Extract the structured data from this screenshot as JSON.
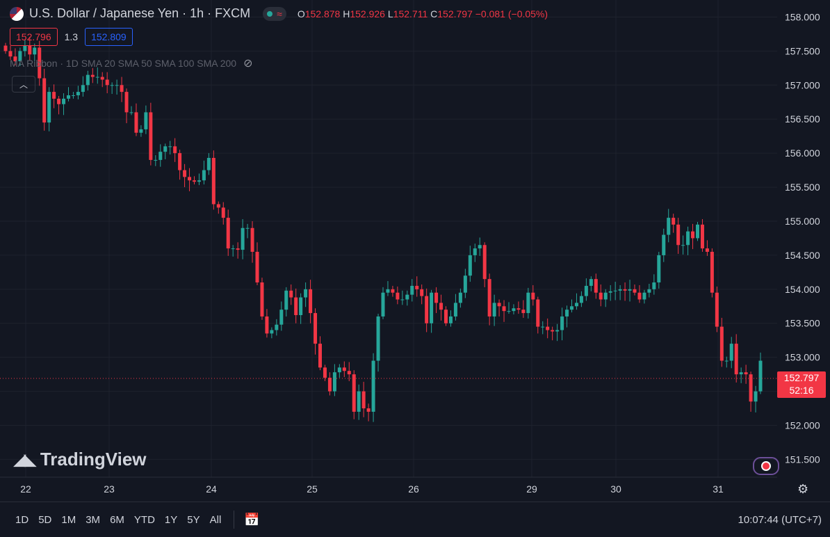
{
  "header": {
    "symbol_title": "U.S. Dollar / Japanese Yen · 1h · FXCM",
    "ohlc": {
      "o_label": "O",
      "o": "152.878",
      "h_label": "H",
      "h": "152.926",
      "l_label": "L",
      "l": "152.711",
      "c_label": "C",
      "c": "152.797",
      "change": "−0.081 (−0.05%)"
    }
  },
  "prices": {
    "bid": "152.796",
    "spread": "1.3",
    "ask": "152.809"
  },
  "indicator": {
    "label": "MA Ribbon · 1D SMA 20 SMA 50 SMA 100 SMA 200"
  },
  "logo_text": "TradingView",
  "last_price": {
    "value": "152.797",
    "countdown": "52:16"
  },
  "toolbar": {
    "ranges": [
      "1D",
      "5D",
      "1M",
      "3M",
      "6M",
      "YTD",
      "1Y",
      "5Y",
      "All"
    ],
    "clock": "10:07:44 (UTC+7)"
  },
  "colors": {
    "up": "#26a69a",
    "down": "#f23645",
    "bg": "#131722",
    "grid": "#1e222d"
  },
  "chart_data": {
    "type": "candlestick",
    "title": "U.S. Dollar / Japanese Yen",
    "interval": "1h",
    "ylim": [
      151.3,
      158.25
    ],
    "y_ticks": [
      "158.000",
      "157.500",
      "157.000",
      "156.500",
      "156.000",
      "155.500",
      "155.000",
      "154.500",
      "154.000",
      "153.500",
      "153.000",
      "152.500",
      "152.000",
      "151.500"
    ],
    "x_labels": [
      "22",
      "23",
      "24",
      "25",
      "26",
      "29",
      "30",
      "31"
    ],
    "last_price": 152.797,
    "closes": [
      157.5,
      157.42,
      157.35,
      157.5,
      157.58,
      157.45,
      157.55,
      157.1,
      156.45,
      156.9,
      156.8,
      156.72,
      156.8,
      156.85,
      156.85,
      156.9,
      157.0,
      157.15,
      157.12,
      157.12,
      157.08,
      157.0,
      157.0,
      157.0,
      156.9,
      156.6,
      156.6,
      156.3,
      156.35,
      156.6,
      155.9,
      155.9,
      156.02,
      156.1,
      156.1,
      156.0,
      155.75,
      155.65,
      155.6,
      155.58,
      155.6,
      155.75,
      155.93,
      155.25,
      155.2,
      155.05,
      154.6,
      154.6,
      154.58,
      154.9,
      154.9,
      154.55,
      154.1,
      153.6,
      153.35,
      153.4,
      153.48,
      153.7,
      153.98,
      153.88,
      153.62,
      153.88,
      154.0,
      153.65,
      153.2,
      152.85,
      152.7,
      152.5,
      152.78,
      152.85,
      152.8,
      152.75,
      152.2,
      152.5,
      152.25,
      152.2,
      152.95,
      153.6,
      153.95,
      154.0,
      153.95,
      153.85,
      153.85,
      153.92,
      154.05,
      154.0,
      153.9,
      153.5,
      153.95,
      153.8,
      153.7,
      153.5,
      153.6,
      153.8,
      153.95,
      154.2,
      154.5,
      154.6,
      154.65,
      154.15,
      153.6,
      153.8,
      153.75,
      153.68,
      153.68,
      153.72,
      153.7,
      153.65,
      153.95,
      153.85,
      153.45,
      153.45,
      153.4,
      153.38,
      153.4,
      153.6,
      153.7,
      153.75,
      153.8,
      153.9,
      154.05,
      154.15,
      153.95,
      153.85,
      153.95,
      153.97,
      153.98,
      154.0,
      153.98,
      154.0,
      153.95,
      153.85,
      153.95,
      154.0,
      154.1,
      154.5,
      154.8,
      155.05,
      154.95,
      154.65,
      154.65,
      154.85,
      154.75,
      154.95,
      154.6,
      154.55,
      153.95,
      153.45,
      152.95,
      152.95,
      153.2,
      152.75,
      152.78,
      152.75,
      152.35,
      152.5,
      152.95
    ]
  }
}
